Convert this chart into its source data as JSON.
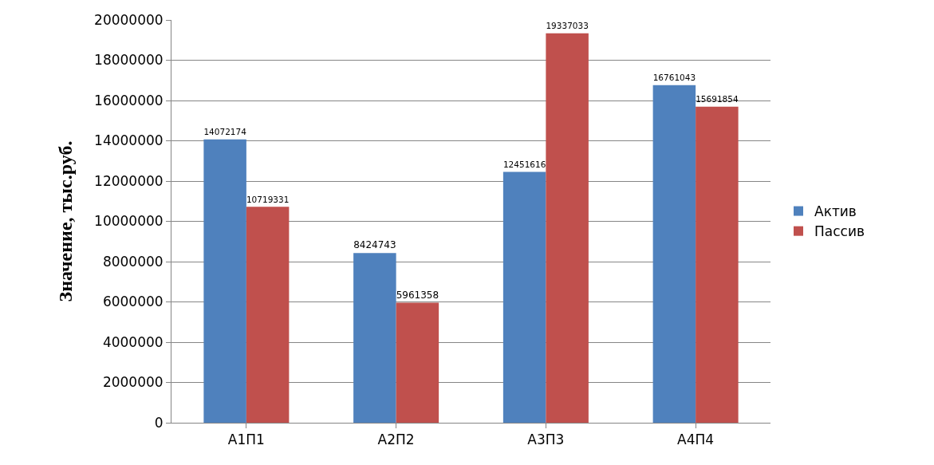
{
  "chart_data": {
    "type": "bar",
    "ylabel": "Значение, тыс.руб.",
    "categories": [
      "А1П1",
      "А2П2",
      "А3П3",
      "А4П4"
    ],
    "series": [
      {
        "name": "Актив",
        "color": "#4f81bd",
        "values": [
          14072174,
          8424743,
          12451616,
          16761043
        ]
      },
      {
        "name": "Пассив",
        "color": "#c0504d",
        "values": [
          10719331,
          5961358,
          19337033,
          15691854
        ]
      }
    ],
    "ylim": [
      0,
      20000000
    ],
    "yticks": [
      0,
      2000000,
      4000000,
      6000000,
      8000000,
      10000000,
      12000000,
      14000000,
      16000000,
      18000000,
      20000000
    ],
    "grid": "y",
    "legend": "right",
    "data_labels": true
  }
}
